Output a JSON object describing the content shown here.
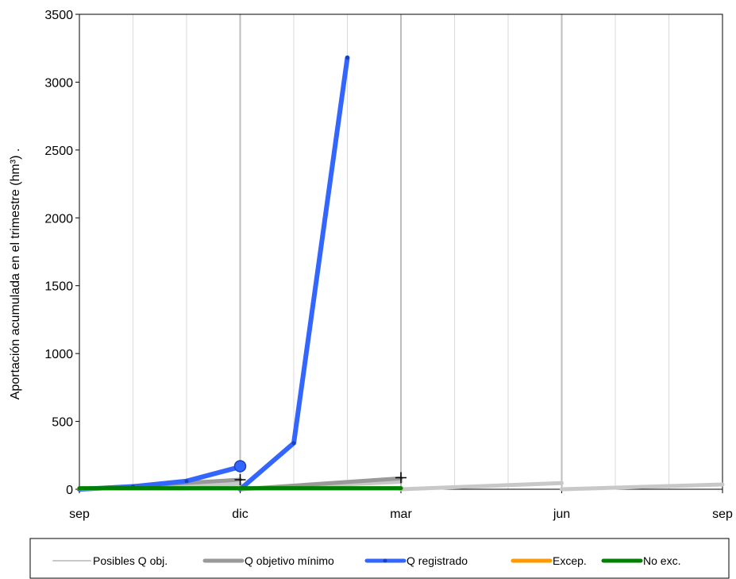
{
  "chart_data": {
    "type": "line",
    "ylabel": "Aportación acumulada en el trimestre (hm³)   .",
    "ylim": [
      0,
      3500
    ],
    "yticks": [
      0,
      500,
      1000,
      1500,
      2000,
      2500,
      3000,
      3500
    ],
    "x_months_range": [
      0,
      12
    ],
    "xticks": [
      {
        "label": "sep",
        "month": 0
      },
      {
        "label": "dic",
        "month": 3
      },
      {
        "label": "mar",
        "month": 6
      },
      {
        "label": "jun",
        "month": 9
      },
      {
        "label": "sep",
        "month": 12
      }
    ],
    "grid": true,
    "legend_position": "bottom",
    "series": [
      {
        "name": "Posibles Q obj.",
        "color": "#c8c8c8",
        "segments": [
          [
            [
              0,
              0
            ],
            [
              3,
              40
            ]
          ],
          [
            [
              3,
              0
            ],
            [
              6,
              55
            ]
          ],
          [
            [
              6,
              0
            ],
            [
              9,
              45
            ]
          ],
          [
            [
              9,
              0
            ],
            [
              12,
              35
            ]
          ]
        ]
      },
      {
        "name": "Q objetivo mínimo",
        "color": "#999999",
        "segments": [
          [
            [
              0,
              0
            ],
            [
              3,
              70
            ]
          ],
          [
            [
              3,
              0
            ],
            [
              6,
              80
            ]
          ]
        ]
      },
      {
        "name": "Q registrado",
        "color": "#3366ff",
        "segments": [
          [
            [
              0,
              0
            ],
            [
              1,
              20
            ],
            [
              2,
              60
            ],
            [
              3,
              165
            ]
          ],
          [
            [
              3,
              0
            ],
            [
              4,
              340
            ],
            [
              5,
              3180
            ]
          ]
        ]
      },
      {
        "name": "Excep.",
        "color": "#ff9900",
        "segments": [
          [
            [
              0,
              5
            ],
            [
              6,
              5
            ]
          ]
        ]
      },
      {
        "name": "No exc.",
        "color": "#008000",
        "segments": [
          [
            [
              0,
              8
            ],
            [
              6,
              8
            ]
          ]
        ]
      }
    ],
    "highlight_point": {
      "x": 3,
      "y": 170,
      "color": "#3366ff"
    },
    "cross_markers": [
      {
        "x": 3,
        "y": 70
      },
      {
        "x": 6,
        "y": 85
      }
    ]
  }
}
